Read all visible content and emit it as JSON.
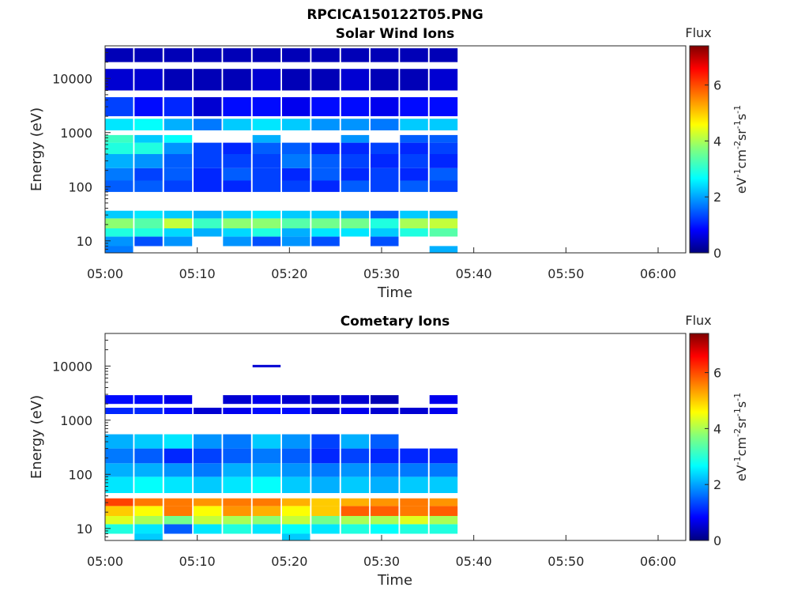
{
  "figure": {
    "title": "RPCICA150122T05.PNG"
  },
  "colormap": "jet",
  "chart_data": [
    {
      "type": "heatmap",
      "title": "Solar Wind Ions",
      "xlabel": "Time",
      "ylabel": "Energy (eV)",
      "x_ticks": [
        "05:00",
        "05:10",
        "05:20",
        "05:30",
        "05:40",
        "05:50",
        "06:00"
      ],
      "y_ticks": [
        "10",
        "100",
        "1000",
        "10000"
      ],
      "y_scale": "log",
      "ylim": [
        6,
        40000
      ],
      "xlim_minutes": [
        0,
        63
      ],
      "data_time_range_minutes": [
        0,
        36.5
      ],
      "colorbar": {
        "label": "Flux",
        "unit_label": "eV-1cm-2sr-1s-1",
        "ticks": [
          "0",
          "2",
          "4",
          "6"
        ],
        "range": [
          0,
          7.4
        ]
      },
      "columns_minutes": [
        0,
        3.2,
        6.4,
        9.6,
        12.8,
        16.0,
        19.2,
        22.4,
        25.6,
        28.8,
        32.0,
        35.2
      ],
      "bands": [
        {
          "energy": [
            6,
            8
          ],
          "flux": [
            1.8,
            0,
            0,
            0,
            0,
            0,
            0,
            0,
            0,
            0,
            0,
            2.2
          ]
        },
        {
          "energy": [
            8,
            12
          ],
          "flux": [
            2.0,
            1.5,
            2.0,
            0,
            2.0,
            1.5,
            2.0,
            1.5,
            0,
            1.5,
            0,
            0
          ]
        },
        {
          "energy": [
            12,
            17
          ],
          "flux": [
            3.0,
            3.0,
            2.5,
            2.2,
            2.5,
            3.0,
            2.2,
            2.6,
            2.6,
            2.4,
            3.0,
            3.4
          ]
        },
        {
          "energy": [
            17,
            26
          ],
          "flux": [
            3.8,
            3.4,
            4.2,
            3.2,
            3.8,
            3.8,
            3.4,
            3.6,
            3.6,
            3.0,
            4.0,
            4.2
          ]
        },
        {
          "energy": [
            26,
            36
          ],
          "flux": [
            2.4,
            2.6,
            2.4,
            2.2,
            2.4,
            2.6,
            2.4,
            2.4,
            2.2,
            1.6,
            2.4,
            2.2
          ]
        },
        {
          "energy": [
            80,
            130
          ],
          "flux": [
            1.6,
            1.6,
            1.4,
            1.2,
            1.2,
            1.4,
            1.4,
            1.2,
            1.6,
            1.4,
            1.6,
            1.4
          ]
        },
        {
          "energy": [
            130,
            220
          ],
          "flux": [
            1.8,
            1.4,
            1.6,
            1.2,
            1.6,
            1.4,
            1.2,
            1.6,
            1.2,
            1.4,
            1.2,
            1.6
          ]
        },
        {
          "energy": [
            220,
            400
          ],
          "flux": [
            2.2,
            2.0,
            1.6,
            1.4,
            1.4,
            1.4,
            1.8,
            1.6,
            1.4,
            1.2,
            1.4,
            1.2
          ]
        },
        {
          "energy": [
            400,
            650
          ],
          "flux": [
            3.0,
            3.0,
            2.0,
            1.4,
            1.2,
            1.6,
            1.6,
            1.2,
            1.2,
            1.4,
            1.2,
            1.4
          ]
        },
        {
          "energy": [
            650,
            900
          ],
          "flux": [
            3.2,
            2.4,
            2.8,
            0,
            0,
            2.2,
            0,
            0,
            2.0,
            0,
            1.6,
            1.6
          ]
        },
        {
          "energy": [
            1100,
            1800
          ],
          "flux": [
            2.6,
            2.8,
            2.2,
            1.8,
            2.4,
            2.6,
            2.4,
            2.0,
            2.0,
            1.8,
            2.4,
            2.4
          ]
        },
        {
          "energy": [
            2000,
            4500
          ],
          "flux": [
            1.4,
            1.0,
            1.2,
            0.6,
            1.0,
            1.0,
            0.8,
            1.0,
            1.0,
            0.8,
            1.0,
            1.0
          ]
        },
        {
          "energy": [
            6000,
            15000
          ],
          "flux": [
            0.6,
            0.6,
            0.4,
            0.4,
            0.4,
            0.6,
            0.4,
            0.4,
            0.6,
            0.4,
            0.4,
            0.6
          ]
        },
        {
          "energy": [
            20000,
            36000
          ],
          "flux": [
            0.4,
            0.4,
            0.4,
            0.4,
            0.4,
            0.4,
            0.4,
            0.4,
            0.4,
            0.4,
            0.4,
            0.4
          ]
        }
      ]
    },
    {
      "type": "heatmap",
      "title": "Cometary Ions",
      "xlabel": "Time",
      "ylabel": "Energy (eV)",
      "x_ticks": [
        "05:00",
        "05:10",
        "05:20",
        "05:30",
        "05:40",
        "05:50",
        "06:00"
      ],
      "y_ticks": [
        "10",
        "100",
        "1000",
        "10000"
      ],
      "y_scale": "log",
      "ylim": [
        6,
        40000
      ],
      "xlim_minutes": [
        0,
        63
      ],
      "data_time_range_minutes": [
        0,
        36.5
      ],
      "colorbar": {
        "label": "Flux",
        "unit_label": "eV-1cm-2sr-1s-1",
        "ticks": [
          "0",
          "2",
          "4",
          "6"
        ],
        "range": [
          0,
          7.4
        ]
      },
      "columns_minutes": [
        0,
        3.2,
        6.4,
        9.6,
        12.8,
        16.0,
        19.2,
        22.4,
        25.6,
        28.8,
        32.0,
        35.2
      ],
      "bands": [
        {
          "energy": [
            6,
            8
          ],
          "flux": [
            0,
            2.4,
            0,
            0,
            0,
            0,
            2.4,
            0,
            0,
            0,
            0,
            0
          ]
        },
        {
          "energy": [
            8,
            12
          ],
          "flux": [
            3.0,
            2.6,
            1.6,
            2.6,
            3.0,
            2.6,
            2.8,
            2.6,
            3.0,
            2.8,
            3.0,
            3.0
          ]
        },
        {
          "energy": [
            12,
            17
          ],
          "flux": [
            4.4,
            4.0,
            3.6,
            4.2,
            4.0,
            3.8,
            4.2,
            3.6,
            4.0,
            4.0,
            4.4,
            4.0
          ]
        },
        {
          "energy": [
            17,
            26
          ],
          "flux": [
            5.0,
            4.6,
            5.6,
            4.6,
            5.4,
            5.2,
            4.6,
            5.0,
            5.8,
            5.8,
            5.6,
            5.8
          ]
        },
        {
          "energy": [
            26,
            36
          ],
          "flux": [
            6.0,
            5.6,
            5.6,
            5.4,
            5.6,
            5.6,
            5.2,
            5.0,
            5.2,
            5.4,
            5.6,
            5.4
          ]
        },
        {
          "energy": [
            45,
            90
          ],
          "flux": [
            2.6,
            2.8,
            2.6,
            2.4,
            2.6,
            2.8,
            2.4,
            2.2,
            2.4,
            2.2,
            2.4,
            2.4
          ]
        },
        {
          "energy": [
            90,
            160
          ],
          "flux": [
            2.2,
            2.2,
            2.0,
            1.8,
            2.2,
            2.2,
            2.0,
            1.8,
            2.0,
            1.8,
            1.8,
            1.8
          ]
        },
        {
          "energy": [
            160,
            300
          ],
          "flux": [
            1.8,
            1.6,
            1.2,
            1.4,
            1.6,
            1.8,
            1.6,
            1.2,
            1.4,
            1.2,
            1.2,
            1.2
          ]
        },
        {
          "energy": [
            300,
            550
          ],
          "flux": [
            2.2,
            2.4,
            2.6,
            2.0,
            1.8,
            2.4,
            2.0,
            1.4,
            2.2,
            1.6,
            0,
            0
          ]
        },
        {
          "energy": [
            1300,
            1700
          ],
          "flux": [
            1.2,
            1.2,
            1.0,
            0.6,
            0.8,
            1.0,
            1.0,
            0.6,
            0.8,
            0.6,
            0.6,
            0.8
          ]
        },
        {
          "energy": [
            2000,
            2900
          ],
          "flux": [
            1.0,
            1.0,
            0.8,
            0,
            0.6,
            0.8,
            0.6,
            0.6,
            0.6,
            0.4,
            0,
            0.8
          ]
        },
        {
          "energy": [
            9500,
            10500
          ],
          "flux": [
            0,
            0,
            0,
            0,
            0,
            0.6,
            0,
            0,
            0,
            0,
            0,
            0
          ]
        }
      ]
    }
  ]
}
